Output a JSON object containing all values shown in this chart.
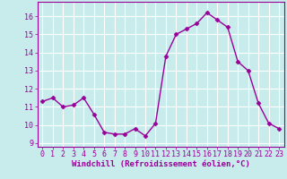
{
  "x": [
    0,
    1,
    2,
    3,
    4,
    5,
    6,
    7,
    8,
    9,
    10,
    11,
    12,
    13,
    14,
    15,
    16,
    17,
    18,
    19,
    20,
    21,
    22,
    23
  ],
  "y": [
    11.3,
    11.5,
    11.0,
    11.1,
    11.5,
    10.6,
    9.6,
    9.5,
    9.5,
    9.8,
    9.4,
    10.1,
    13.8,
    15.0,
    15.3,
    15.6,
    16.2,
    15.8,
    15.4,
    13.5,
    13.0,
    11.2,
    10.1,
    9.8
  ],
  "line_color": "#990099",
  "marker": "D",
  "marker_size": 2.5,
  "bg_color": "#c8ecec",
  "grid_color": "#ffffff",
  "xlabel": "Windchill (Refroidissement éolien,°C)",
  "ylim_min": 8.8,
  "ylim_max": 16.8,
  "xlim_min": -0.5,
  "xlim_max": 23.5,
  "yticks": [
    9,
    10,
    11,
    12,
    13,
    14,
    15,
    16
  ],
  "xticks": [
    0,
    1,
    2,
    3,
    4,
    5,
    6,
    7,
    8,
    9,
    10,
    11,
    12,
    13,
    14,
    15,
    16,
    17,
    18,
    19,
    20,
    21,
    22,
    23
  ],
  "tick_color": "#990099",
  "label_color": "#990099",
  "axis_color": "#990099",
  "font_size_xlabel": 6.5,
  "font_size_ticks": 6.0,
  "linewidth": 1.0
}
